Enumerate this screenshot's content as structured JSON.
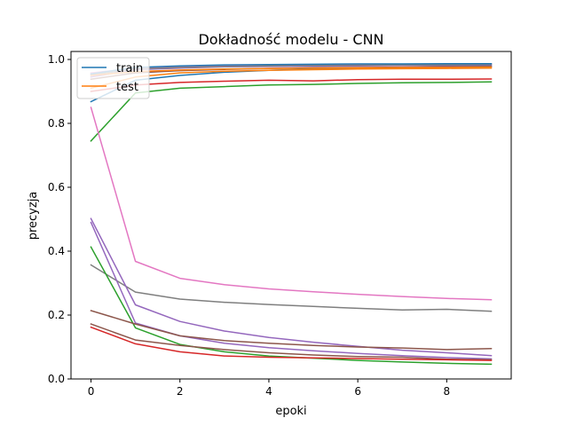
{
  "chart_data": {
    "type": "line",
    "title": "Dokładność modelu - CNN",
    "xlabel": "epoki",
    "ylabel": "precyzja",
    "xlim": [
      -0.45,
      9.45
    ],
    "ylim": [
      0,
      1.025
    ],
    "xticks": [
      0,
      2,
      4,
      6,
      8
    ],
    "xtick_labels": [
      "0",
      "2",
      "4",
      "6",
      "8"
    ],
    "yticks": [
      0.0,
      0.2,
      0.4,
      0.6,
      0.8,
      1.0
    ],
    "ytick_labels": [
      "0.0",
      "0.2",
      "0.4",
      "0.6",
      "0.8",
      "1.0"
    ],
    "grid": false,
    "legend": {
      "position": "top-left",
      "entries": [
        {
          "label": "train",
          "color": "#1f77b4"
        },
        {
          "label": "test",
          "color": "#ff7f0e"
        }
      ]
    },
    "x": [
      0,
      1,
      2,
      3,
      4,
      5,
      6,
      7,
      8,
      9
    ],
    "series": [
      {
        "name": "train",
        "color": "#1f77b4",
        "values": [
          0.868,
          0.935,
          0.95,
          0.96,
          0.966,
          0.97,
          0.973,
          0.975,
          0.977,
          0.978
        ]
      },
      {
        "name": "test",
        "color": "#ff7f0e",
        "values": [
          0.91,
          0.945,
          0.958,
          0.963,
          0.966,
          0.968,
          0.97,
          0.971,
          0.972,
          0.973
        ]
      },
      {
        "name": "",
        "color": "#2ca02c",
        "values": [
          0.745,
          0.895,
          0.91,
          0.915,
          0.92,
          0.922,
          0.925,
          0.927,
          0.928,
          0.93
        ]
      },
      {
        "name": "",
        "color": "#d62728",
        "values": [
          0.9,
          0.92,
          0.928,
          0.932,
          0.935,
          0.933,
          0.937,
          0.938,
          0.938,
          0.939
        ]
      },
      {
        "name": "",
        "color": "#9467bd",
        "values": [
          0.945,
          0.968,
          0.973,
          0.977,
          0.978,
          0.979,
          0.98,
          0.981,
          0.981,
          0.982
        ]
      },
      {
        "name": "",
        "color": "#8c564b",
        "values": [
          0.938,
          0.958,
          0.965,
          0.969,
          0.972,
          0.974,
          0.975,
          0.976,
          0.977,
          0.978
        ]
      },
      {
        "name": "",
        "color": "#e377c2",
        "values": [
          0.958,
          0.972,
          0.977,
          0.98,
          0.982,
          0.983,
          0.984,
          0.985,
          0.985,
          0.986
        ]
      },
      {
        "name": "",
        "color": "#7f7f7f",
        "values": [
          0.952,
          0.97,
          0.975,
          0.978,
          0.98,
          0.981,
          0.982,
          0.983,
          0.983,
          0.984
        ]
      },
      {
        "name": "",
        "color": "#1f77b4",
        "values": [
          0.955,
          0.975,
          0.98,
          0.983,
          0.984,
          0.985,
          0.986,
          0.986,
          0.987,
          0.987
        ]
      },
      {
        "name": "",
        "color": "#ff7f0e",
        "values": [
          0.95,
          0.962,
          0.967,
          0.97,
          0.972,
          0.973,
          0.974,
          0.975,
          0.975,
          0.976
        ]
      },
      {
        "name": "",
        "color": "#e377c2",
        "values": [
          0.85,
          0.368,
          0.315,
          0.295,
          0.282,
          0.273,
          0.265,
          0.258,
          0.252,
          0.248
        ]
      },
      {
        "name": "",
        "color": "#7f7f7f",
        "values": [
          0.357,
          0.272,
          0.25,
          0.24,
          0.233,
          0.227,
          0.221,
          0.216,
          0.218,
          0.212
        ]
      },
      {
        "name": "",
        "color": "#9467bd",
        "values": [
          0.502,
          0.232,
          0.18,
          0.15,
          0.13,
          0.115,
          0.102,
          0.09,
          0.082,
          0.073
        ]
      },
      {
        "name": "",
        "color": "#9467bd",
        "values": [
          0.49,
          0.175,
          0.135,
          0.112,
          0.098,
          0.088,
          0.08,
          0.073,
          0.067,
          0.063
        ]
      },
      {
        "name": "",
        "color": "#2ca02c",
        "values": [
          0.413,
          0.16,
          0.108,
          0.085,
          0.072,
          0.065,
          0.058,
          0.053,
          0.049,
          0.046
        ]
      },
      {
        "name": "",
        "color": "#8c564b",
        "values": [
          0.214,
          0.172,
          0.135,
          0.12,
          0.112,
          0.105,
          0.1,
          0.097,
          0.092,
          0.095
        ]
      },
      {
        "name": "",
        "color": "#8c564b",
        "values": [
          0.172,
          0.122,
          0.105,
          0.092,
          0.082,
          0.075,
          0.07,
          0.068,
          0.062,
          0.06
        ]
      },
      {
        "name": "",
        "color": "#d62728",
        "values": [
          0.162,
          0.11,
          0.085,
          0.072,
          0.068,
          0.066,
          0.064,
          0.062,
          0.06,
          0.058
        ]
      }
    ]
  }
}
